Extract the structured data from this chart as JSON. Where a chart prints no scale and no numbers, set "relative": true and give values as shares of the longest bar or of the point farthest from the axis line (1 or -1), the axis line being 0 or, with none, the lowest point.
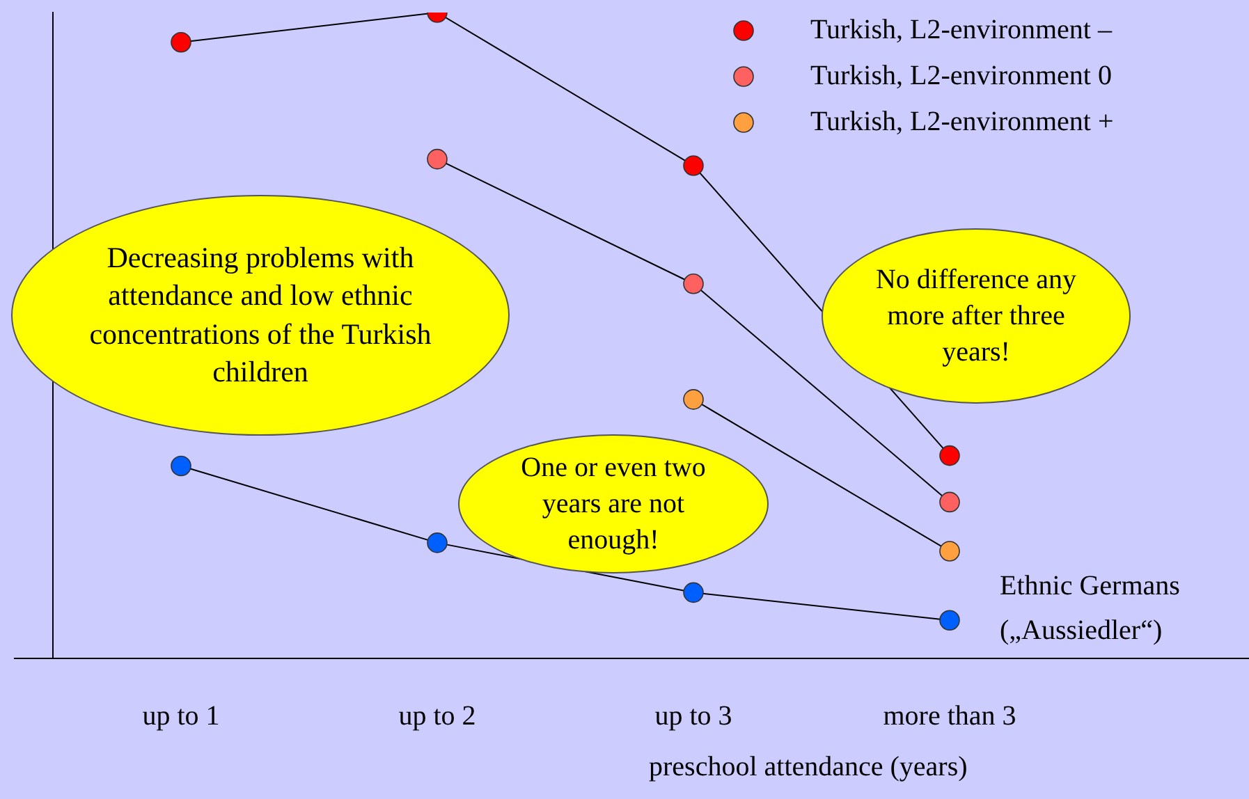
{
  "chart_data": {
    "type": "line",
    "relative": true,
    "xlabel": "preschool attendance (years)",
    "categories": [
      "up to 1",
      "up to 2",
      "up to 3",
      "more than 3"
    ],
    "series": [
      {
        "name": "Turkish, L2-environment –",
        "color": "#ff0000",
        "values": [
          0.954,
          1,
          0.763,
          0.314
        ]
      },
      {
        "name": "Turkish, L2-environment 0",
        "color": "#ff6060",
        "values": [
          null,
          0.773,
          0.58,
          0.242
        ]
      },
      {
        "name": "Turkish, L2-environment +",
        "color": "#ffa040",
        "values": [
          null,
          null,
          0.401,
          0.166
        ]
      },
      {
        "name": "Ethnic Germans („Aussiedler“)",
        "color": "#0060ff",
        "values": [
          0.298,
          0.179,
          0.102,
          0.059
        ]
      }
    ],
    "legend": "top right",
    "marker": "circle",
    "grid": false,
    "annotations": [
      "Decreasing problems with attendance and low ethnic concentrations of the Turkish children",
      "One or even two years are not enough!",
      "No difference any more after three years!"
    ]
  }
}
